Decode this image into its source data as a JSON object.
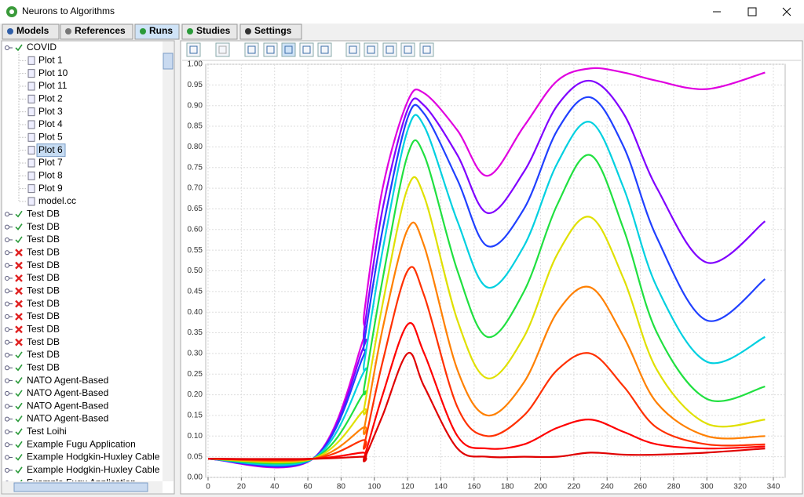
{
  "window": {
    "title": "Neurons to Algorithms"
  },
  "tabs": [
    {
      "label": "Models"
    },
    {
      "label": "References"
    },
    {
      "label": "Runs",
      "selected": true
    },
    {
      "label": "Studies"
    },
    {
      "label": "Settings"
    }
  ],
  "tree": [
    {
      "label": "COVID",
      "status": "ok",
      "children": [
        {
          "label": "Plot 1"
        },
        {
          "label": "Plot 10"
        },
        {
          "label": "Plot 11"
        },
        {
          "label": "Plot 2"
        },
        {
          "label": "Plot 3"
        },
        {
          "label": "Plot 4"
        },
        {
          "label": "Plot 5"
        },
        {
          "label": "Plot 6",
          "selected": true
        },
        {
          "label": "Plot 7"
        },
        {
          "label": "Plot 8"
        },
        {
          "label": "Plot 9"
        },
        {
          "label": "model.cc"
        }
      ]
    },
    {
      "label": "Test DB",
      "status": "ok"
    },
    {
      "label": "Test DB",
      "status": "ok"
    },
    {
      "label": "Test DB",
      "status": "ok"
    },
    {
      "label": "Test DB",
      "status": "error"
    },
    {
      "label": "Test DB",
      "status": "error"
    },
    {
      "label": "Test DB",
      "status": "error"
    },
    {
      "label": "Test DB",
      "status": "error"
    },
    {
      "label": "Test DB",
      "status": "error"
    },
    {
      "label": "Test DB",
      "status": "error"
    },
    {
      "label": "Test DB",
      "status": "error"
    },
    {
      "label": "Test DB",
      "status": "error"
    },
    {
      "label": "Test DB",
      "status": "ok"
    },
    {
      "label": "Test DB",
      "status": "ok"
    },
    {
      "label": "NATO Agent-Based",
      "status": "ok"
    },
    {
      "label": "NATO Agent-Based",
      "status": "ok"
    },
    {
      "label": "NATO Agent-Based",
      "status": "ok"
    },
    {
      "label": "NATO Agent-Based",
      "status": "ok"
    },
    {
      "label": "Test Loihi",
      "status": "ok"
    },
    {
      "label": "Example Fugu Application",
      "status": "ok"
    },
    {
      "label": "Example Hodgkin-Huxley Cable",
      "status": "ok"
    },
    {
      "label": "Example Hodgkin-Huxley Cable",
      "status": "ok"
    },
    {
      "label": "Example Fugu Application",
      "status": "ok"
    }
  ],
  "chart_data": {
    "type": "line",
    "x": [
      0,
      63,
      93,
      94,
      105,
      120,
      130,
      150,
      168,
      190,
      210,
      230,
      250,
      270,
      300,
      335
    ],
    "series": [
      {
        "color": "#e000e0",
        "values": [
          0.045,
          0.045,
          0.33,
          0.4,
          0.7,
          0.91,
          0.93,
          0.84,
          0.73,
          0.85,
          0.96,
          0.99,
          0.98,
          0.96,
          0.94,
          0.98
        ]
      },
      {
        "color": "#8000ff",
        "values": [
          0.045,
          0.045,
          0.31,
          0.36,
          0.65,
          0.89,
          0.9,
          0.78,
          0.64,
          0.74,
          0.9,
          0.96,
          0.88,
          0.7,
          0.52,
          0.62
        ]
      },
      {
        "color": "#2040ff",
        "values": [
          0.045,
          0.045,
          0.29,
          0.33,
          0.6,
          0.87,
          0.88,
          0.72,
          0.56,
          0.65,
          0.84,
          0.92,
          0.8,
          0.58,
          0.38,
          0.48
        ]
      },
      {
        "color": "#00d0e0",
        "values": [
          0.045,
          0.045,
          0.25,
          0.28,
          0.55,
          0.84,
          0.85,
          0.62,
          0.46,
          0.56,
          0.76,
          0.86,
          0.7,
          0.46,
          0.28,
          0.34
        ]
      },
      {
        "color": "#20e040",
        "values": [
          0.045,
          0.045,
          0.2,
          0.22,
          0.48,
          0.78,
          0.78,
          0.5,
          0.34,
          0.45,
          0.66,
          0.78,
          0.6,
          0.35,
          0.19,
          0.22
        ]
      },
      {
        "color": "#e0e000",
        "values": [
          0.045,
          0.045,
          0.16,
          0.17,
          0.42,
          0.7,
          0.68,
          0.38,
          0.24,
          0.34,
          0.54,
          0.63,
          0.48,
          0.26,
          0.13,
          0.14
        ]
      },
      {
        "color": "#ff8000",
        "values": [
          0.045,
          0.045,
          0.12,
          0.12,
          0.36,
          0.6,
          0.56,
          0.26,
          0.15,
          0.23,
          0.4,
          0.46,
          0.34,
          0.18,
          0.1,
          0.1
        ]
      },
      {
        "color": "#ff3000",
        "values": [
          0.045,
          0.045,
          0.09,
          0.08,
          0.28,
          0.5,
          0.44,
          0.17,
          0.1,
          0.15,
          0.26,
          0.3,
          0.22,
          0.12,
          0.08,
          0.08
        ]
      },
      {
        "color": "#ff0000",
        "values": [
          0.045,
          0.045,
          0.06,
          0.05,
          0.2,
          0.37,
          0.3,
          0.1,
          0.07,
          0.08,
          0.12,
          0.14,
          0.11,
          0.08,
          0.07,
          0.075
        ]
      },
      {
        "color": "#e00000",
        "values": [
          0.045,
          0.045,
          0.05,
          0.045,
          0.15,
          0.3,
          0.22,
          0.07,
          0.05,
          0.05,
          0.05,
          0.06,
          0.055,
          0.055,
          0.06,
          0.07
        ]
      }
    ],
    "xlim": [
      0,
      347
    ],
    "ylim": [
      0,
      1
    ],
    "xticks": [
      0,
      20,
      40,
      60,
      80,
      100,
      120,
      140,
      160,
      180,
      200,
      220,
      240,
      260,
      280,
      300,
      320,
      340
    ],
    "yticks": [
      {
        "value": 0,
        "label": "0.00"
      },
      {
        "value": 0.05,
        "label": "0.05"
      },
      {
        "value": 0.1,
        "label": "0.10"
      },
      {
        "value": 0.15,
        "label": "0.15"
      },
      {
        "value": 0.2,
        "label": "0.20"
      },
      {
        "value": 0.25,
        "label": "0.25"
      },
      {
        "value": 0.3,
        "label": "0.30"
      },
      {
        "value": 0.35,
        "label": "0.35"
      },
      {
        "value": 0.4,
        "label": "0.40"
      },
      {
        "value": 0.45,
        "label": "0.45"
      },
      {
        "value": 0.5,
        "label": "0.50"
      },
      {
        "value": 0.55,
        "label": "0.55"
      },
      {
        "value": 0.6,
        "label": "0.60"
      },
      {
        "value": 0.65,
        "label": "0.65"
      },
      {
        "value": 0.7,
        "label": "0.70"
      },
      {
        "value": 0.75,
        "label": "0.75"
      },
      {
        "value": 0.8,
        "label": "0.80"
      },
      {
        "value": 0.85,
        "label": "0.85"
      },
      {
        "value": 0.9,
        "label": "0.90"
      },
      {
        "value": 0.95,
        "label": "0.95"
      },
      {
        "value": 1,
        "label": "1.00"
      }
    ],
    "grid": true
  }
}
